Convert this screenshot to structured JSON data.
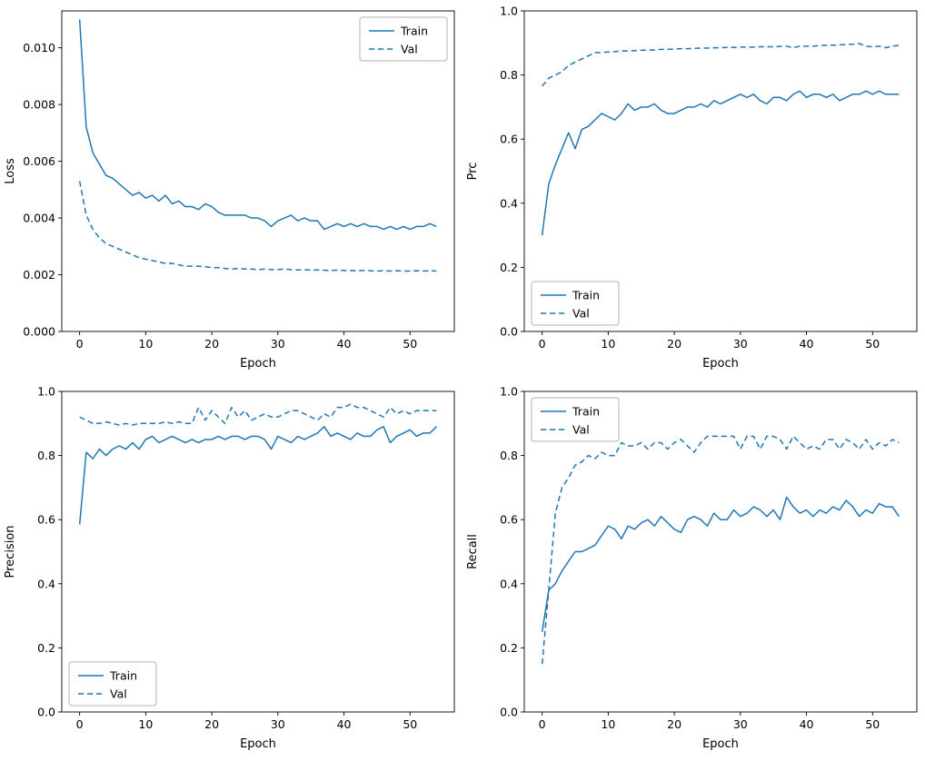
{
  "figure": {
    "background": "#ffffff",
    "accent_color": "#1f77b4",
    "legend_labels": [
      "Train",
      "Val"
    ]
  },
  "chart_data": [
    {
      "name": "loss",
      "type": "line",
      "title": "",
      "xlabel": "Epoch",
      "ylabel": "Loss",
      "xlim": [
        -2.7,
        56.7
      ],
      "ylim": [
        0,
        0.0113
      ],
      "xticks": [
        0,
        10,
        20,
        30,
        40,
        50
      ],
      "xtick_labels": [
        "0",
        "10",
        "20",
        "30",
        "40",
        "50"
      ],
      "yticks": [
        0,
        0.002,
        0.004,
        0.006,
        0.008,
        0.01
      ],
      "ytick_labels": [
        "0.000",
        "0.002",
        "0.004",
        "0.006",
        "0.008",
        "0.010"
      ],
      "legend_pos": "upper right",
      "grid": false,
      "color": "#1f77b4",
      "series": [
        {
          "name": "Train",
          "style": "solid",
          "values": [
            0.011,
            0.0072,
            0.0063,
            0.0059,
            0.0055,
            0.0054,
            0.0052,
            0.005,
            0.0048,
            0.0049,
            0.0047,
            0.0048,
            0.0046,
            0.0048,
            0.0045,
            0.0046,
            0.0044,
            0.0044,
            0.0043,
            0.0045,
            0.0044,
            0.0042,
            0.0041,
            0.0041,
            0.0041,
            0.0041,
            0.004,
            0.004,
            0.0039,
            0.0037,
            0.0039,
            0.004,
            0.0041,
            0.0039,
            0.004,
            0.0039,
            0.0039,
            0.0036,
            0.0037,
            0.0038,
            0.0037,
            0.0038,
            0.0037,
            0.0038,
            0.0037,
            0.0037,
            0.0036,
            0.0037,
            0.0036,
            0.0037,
            0.0036,
            0.0037,
            0.0037,
            0.0038,
            0.0037
          ]
        },
        {
          "name": "Val",
          "style": "dashed",
          "values": [
            0.0053,
            0.0041,
            0.0036,
            0.0033,
            0.0031,
            0.003,
            0.0029,
            0.0028,
            0.0027,
            0.0026,
            0.00255,
            0.0025,
            0.00245,
            0.0024,
            0.0024,
            0.00235,
            0.0023,
            0.0023,
            0.0023,
            0.00228,
            0.00225,
            0.00225,
            0.00222,
            0.0022,
            0.00222,
            0.0022,
            0.0022,
            0.00218,
            0.0022,
            0.00218,
            0.00218,
            0.0022,
            0.00218,
            0.00217,
            0.00218,
            0.00216,
            0.00217,
            0.00216,
            0.00215,
            0.00216,
            0.00215,
            0.00215,
            0.00214,
            0.00215,
            0.00214,
            0.00213,
            0.00214,
            0.00213,
            0.00214,
            0.00213,
            0.00213,
            0.00214,
            0.00213,
            0.00214,
            0.00213
          ]
        }
      ]
    },
    {
      "name": "prc",
      "type": "line",
      "title": "",
      "xlabel": "Epoch",
      "ylabel": "Prc",
      "xlim": [
        -2.7,
        56.7
      ],
      "ylim": [
        0,
        1.0
      ],
      "xticks": [
        0,
        10,
        20,
        30,
        40,
        50
      ],
      "xtick_labels": [
        "0",
        "10",
        "20",
        "30",
        "40",
        "50"
      ],
      "yticks": [
        0,
        0.2,
        0.4,
        0.6,
        0.8,
        1.0
      ],
      "ytick_labels": [
        "0.0",
        "0.2",
        "0.4",
        "0.6",
        "0.8",
        "1.0"
      ],
      "legend_pos": "lower left",
      "grid": false,
      "color": "#1f77b4",
      "series": [
        {
          "name": "Train",
          "style": "solid",
          "values": [
            0.3,
            0.46,
            0.52,
            0.57,
            0.62,
            0.57,
            0.63,
            0.64,
            0.66,
            0.68,
            0.67,
            0.66,
            0.68,
            0.71,
            0.69,
            0.7,
            0.7,
            0.71,
            0.69,
            0.68,
            0.68,
            0.69,
            0.7,
            0.7,
            0.71,
            0.7,
            0.72,
            0.71,
            0.72,
            0.73,
            0.74,
            0.73,
            0.74,
            0.72,
            0.71,
            0.73,
            0.73,
            0.72,
            0.74,
            0.75,
            0.73,
            0.74,
            0.74,
            0.73,
            0.74,
            0.72,
            0.73,
            0.74,
            0.74,
            0.75,
            0.74,
            0.75,
            0.74,
            0.74,
            0.74
          ]
        },
        {
          "name": "Val",
          "style": "dashed",
          "values": [
            0.765,
            0.79,
            0.8,
            0.81,
            0.83,
            0.84,
            0.85,
            0.86,
            0.87,
            0.87,
            0.872,
            0.873,
            0.875,
            0.875,
            0.876,
            0.877,
            0.878,
            0.878,
            0.88,
            0.88,
            0.881,
            0.882,
            0.882,
            0.883,
            0.884,
            0.884,
            0.885,
            0.885,
            0.886,
            0.886,
            0.887,
            0.887,
            0.887,
            0.888,
            0.888,
            0.888,
            0.889,
            0.89,
            0.885,
            0.89,
            0.89,
            0.89,
            0.892,
            0.893,
            0.893,
            0.894,
            0.895,
            0.896,
            0.898,
            0.89,
            0.888,
            0.89,
            0.885,
            0.89,
            0.893
          ]
        }
      ]
    },
    {
      "name": "precision",
      "type": "line",
      "title": "",
      "xlabel": "Epoch",
      "ylabel": "Precision",
      "xlim": [
        -2.7,
        56.7
      ],
      "ylim": [
        0,
        1.0
      ],
      "xticks": [
        0,
        10,
        20,
        30,
        40,
        50
      ],
      "xtick_labels": [
        "0",
        "10",
        "20",
        "30",
        "40",
        "50"
      ],
      "yticks": [
        0,
        0.2,
        0.4,
        0.6,
        0.8,
        1.0
      ],
      "ytick_labels": [
        "0.0",
        "0.2",
        "0.4",
        "0.6",
        "0.8",
        "1.0"
      ],
      "legend_pos": "lower left",
      "grid": false,
      "color": "#1f77b4",
      "series": [
        {
          "name": "Train",
          "style": "solid",
          "values": [
            0.585,
            0.81,
            0.79,
            0.82,
            0.8,
            0.82,
            0.83,
            0.82,
            0.84,
            0.82,
            0.85,
            0.86,
            0.84,
            0.85,
            0.86,
            0.85,
            0.84,
            0.85,
            0.84,
            0.85,
            0.85,
            0.86,
            0.85,
            0.86,
            0.86,
            0.85,
            0.86,
            0.86,
            0.85,
            0.82,
            0.86,
            0.85,
            0.84,
            0.86,
            0.85,
            0.86,
            0.87,
            0.89,
            0.86,
            0.87,
            0.86,
            0.85,
            0.87,
            0.86,
            0.86,
            0.88,
            0.89,
            0.84,
            0.86,
            0.87,
            0.88,
            0.86,
            0.87,
            0.87,
            0.89
          ]
        },
        {
          "name": "Val",
          "style": "dashed",
          "values": [
            0.92,
            0.91,
            0.9,
            0.9,
            0.905,
            0.9,
            0.895,
            0.9,
            0.895,
            0.9,
            0.9,
            0.9,
            0.9,
            0.905,
            0.9,
            0.905,
            0.9,
            0.9,
            0.95,
            0.91,
            0.94,
            0.92,
            0.9,
            0.95,
            0.92,
            0.94,
            0.91,
            0.92,
            0.93,
            0.92,
            0.92,
            0.93,
            0.94,
            0.94,
            0.93,
            0.92,
            0.91,
            0.93,
            0.92,
            0.95,
            0.95,
            0.96,
            0.95,
            0.95,
            0.94,
            0.93,
            0.92,
            0.95,
            0.93,
            0.94,
            0.93,
            0.94,
            0.94,
            0.94,
            0.94
          ]
        }
      ]
    },
    {
      "name": "recall",
      "type": "line",
      "title": "",
      "xlabel": "Epoch",
      "ylabel": "Recall",
      "xlim": [
        -2.7,
        56.7
      ],
      "ylim": [
        0,
        1.0
      ],
      "xticks": [
        0,
        10,
        20,
        30,
        40,
        50
      ],
      "xtick_labels": [
        "0",
        "10",
        "20",
        "30",
        "40",
        "50"
      ],
      "yticks": [
        0,
        0.2,
        0.4,
        0.6,
        0.8,
        1.0
      ],
      "ytick_labels": [
        "0.0",
        "0.2",
        "0.4",
        "0.6",
        "0.8",
        "1.0"
      ],
      "legend_pos": "upper left",
      "grid": false,
      "color": "#1f77b4",
      "series": [
        {
          "name": "Train",
          "style": "solid",
          "values": [
            0.25,
            0.38,
            0.4,
            0.44,
            0.47,
            0.5,
            0.5,
            0.51,
            0.52,
            0.55,
            0.58,
            0.57,
            0.54,
            0.58,
            0.57,
            0.59,
            0.6,
            0.58,
            0.61,
            0.59,
            0.57,
            0.56,
            0.6,
            0.61,
            0.6,
            0.58,
            0.62,
            0.6,
            0.6,
            0.63,
            0.61,
            0.62,
            0.64,
            0.63,
            0.61,
            0.63,
            0.6,
            0.67,
            0.64,
            0.62,
            0.63,
            0.61,
            0.63,
            0.62,
            0.64,
            0.63,
            0.66,
            0.64,
            0.61,
            0.63,
            0.62,
            0.65,
            0.64,
            0.64,
            0.61
          ]
        },
        {
          "name": "Val",
          "style": "dashed",
          "values": [
            0.15,
            0.38,
            0.62,
            0.7,
            0.73,
            0.77,
            0.78,
            0.8,
            0.79,
            0.81,
            0.8,
            0.8,
            0.84,
            0.83,
            0.83,
            0.84,
            0.82,
            0.84,
            0.84,
            0.82,
            0.84,
            0.85,
            0.83,
            0.81,
            0.84,
            0.86,
            0.86,
            0.86,
            0.86,
            0.86,
            0.82,
            0.86,
            0.86,
            0.82,
            0.86,
            0.86,
            0.85,
            0.82,
            0.86,
            0.84,
            0.82,
            0.83,
            0.82,
            0.85,
            0.85,
            0.82,
            0.85,
            0.84,
            0.82,
            0.85,
            0.82,
            0.84,
            0.83,
            0.85,
            0.84
          ]
        }
      ]
    }
  ]
}
